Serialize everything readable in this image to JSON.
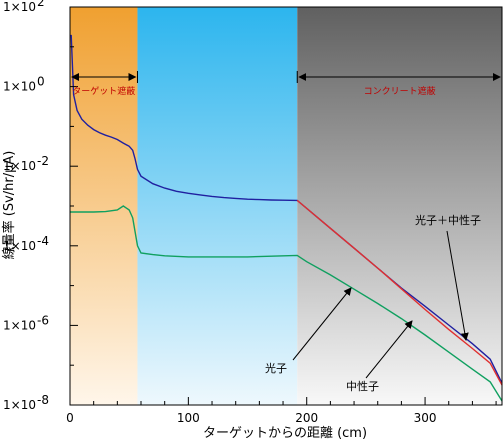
{
  "chart_data": {
    "type": "line",
    "xlabel": "ターゲットからの距離 (cm)",
    "ylabel": "線量率 (Sv/hr/μA)",
    "xlim": [
      0,
      365
    ],
    "ylim_log10": [
      -8,
      2
    ],
    "y_scale": "log",
    "x_ticks": [
      0,
      100,
      200,
      300
    ],
    "y_ticks": [
      {
        "exp": 2,
        "label_base": "1×10",
        "label_exp": "2"
      },
      {
        "exp": 0,
        "label_base": "1×10",
        "label_exp": "0"
      },
      {
        "exp": -2,
        "label_base": "1×10",
        "label_exp": "-2"
      },
      {
        "exp": -4,
        "label_base": "1×10",
        "label_exp": "-4"
      },
      {
        "exp": -6,
        "label_base": "1×10",
        "label_exp": "-6"
      },
      {
        "exp": -8,
        "label_base": "1×10",
        "label_exp": "-8"
      }
    ],
    "regions": [
      {
        "label": "ターゲット遮蔽",
        "x_start": 0,
        "x_end": 57,
        "color_top": "#f0a030",
        "color_bottom": "#fff6ea"
      },
      {
        "label": "",
        "x_start": 57,
        "x_end": 192,
        "color_top": "#2cb5ee",
        "color_bottom": "#eef8fd"
      },
      {
        "label": "コンクリート遮蔽",
        "x_start": 192,
        "x_end": 365,
        "color_top": "#606060",
        "color_bottom": "#f8f8f8"
      }
    ],
    "series": [
      {
        "name": "光子＋中性子",
        "color": "#2020a0",
        "points": [
          [
            1,
            1.3
          ],
          [
            3,
            -0.2
          ],
          [
            6,
            -0.6
          ],
          [
            10,
            -0.82
          ],
          [
            15,
            -0.97
          ],
          [
            20,
            -1.08
          ],
          [
            25,
            -1.16
          ],
          [
            30,
            -1.22
          ],
          [
            35,
            -1.27
          ],
          [
            40,
            -1.33
          ],
          [
            45,
            -1.42
          ],
          [
            50,
            -1.5
          ],
          [
            53,
            -1.6
          ],
          [
            55,
            -1.82
          ],
          [
            57,
            -2.08
          ],
          [
            60,
            -2.25
          ],
          [
            70,
            -2.44
          ],
          [
            80,
            -2.55
          ],
          [
            90,
            -2.63
          ],
          [
            100,
            -2.68
          ],
          [
            110,
            -2.72
          ],
          [
            120,
            -2.76
          ],
          [
            130,
            -2.79
          ],
          [
            140,
            -2.81
          ],
          [
            150,
            -2.83
          ],
          [
            160,
            -2.84
          ],
          [
            170,
            -2.85
          ],
          [
            180,
            -2.855
          ],
          [
            192,
            -2.86
          ],
          [
            200,
            -3.06
          ],
          [
            220,
            -3.56
          ],
          [
            240,
            -4.06
          ],
          [
            260,
            -4.56
          ],
          [
            280,
            -5.06
          ],
          [
            300,
            -5.52
          ],
          [
            320,
            -5.99
          ],
          [
            340,
            -6.46
          ],
          [
            355,
            -6.85
          ],
          [
            365,
            -7.45
          ]
        ]
      },
      {
        "name": "",
        "color": "#e03030",
        "points": [
          [
            192,
            -2.86
          ],
          [
            200,
            -3.06
          ],
          [
            220,
            -3.56
          ],
          [
            240,
            -4.06
          ],
          [
            260,
            -4.56
          ],
          [
            280,
            -5.08
          ],
          [
            300,
            -5.6
          ],
          [
            320,
            -6.1
          ],
          [
            340,
            -6.58
          ],
          [
            355,
            -6.95
          ],
          [
            365,
            -7.5
          ]
        ]
      },
      {
        "name": "中性子",
        "color": "#10a060",
        "points": [
          [
            0,
            -3.15
          ],
          [
            10,
            -3.15
          ],
          [
            20,
            -3.15
          ],
          [
            30,
            -3.14
          ],
          [
            40,
            -3.1
          ],
          [
            45,
            -3.0
          ],
          [
            50,
            -3.1
          ],
          [
            53,
            -3.3
          ],
          [
            55,
            -3.65
          ],
          [
            57,
            -4.0
          ],
          [
            60,
            -4.18
          ],
          [
            70,
            -4.22
          ],
          [
            80,
            -4.25
          ],
          [
            100,
            -4.28
          ],
          [
            150,
            -4.28
          ],
          [
            192,
            -4.24
          ],
          [
            200,
            -4.4
          ],
          [
            220,
            -4.73
          ],
          [
            240,
            -5.09
          ],
          [
            260,
            -5.45
          ],
          [
            280,
            -5.83
          ],
          [
            300,
            -6.24
          ],
          [
            320,
            -6.67
          ],
          [
            340,
            -7.1
          ],
          [
            355,
            -7.42
          ],
          [
            365,
            -7.9
          ]
        ]
      }
    ],
    "annotations": [
      {
        "text": "ターゲット遮蔽"
      },
      {
        "text": "コンクリート遮蔽"
      },
      {
        "text": "光子＋中性子"
      },
      {
        "text": "光子"
      },
      {
        "text": "中性子"
      }
    ]
  }
}
